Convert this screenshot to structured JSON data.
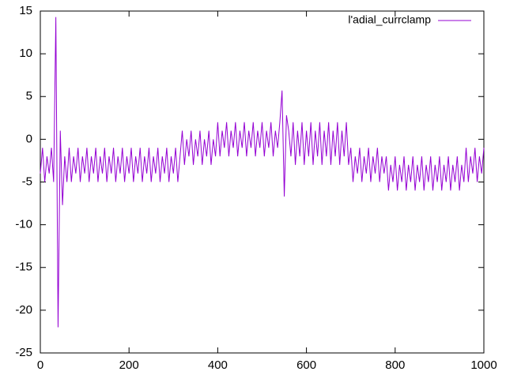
{
  "chart_data": {
    "type": "line",
    "legend": "top-right",
    "series": [
      {
        "name": "l'adial_currclamp",
        "color": "#9400d3",
        "x": [
          0,
          5,
          10,
          15,
          20,
          25,
          30,
          35,
          40,
          45,
          50,
          55,
          60,
          65,
          70,
          75,
          80,
          85,
          90,
          95,
          100,
          105,
          110,
          115,
          120,
          125,
          130,
          135,
          140,
          145,
          150,
          155,
          160,
          165,
          170,
          175,
          180,
          185,
          190,
          195,
          200,
          205,
          210,
          215,
          220,
          225,
          230,
          235,
          240,
          245,
          250,
          255,
          260,
          265,
          270,
          275,
          280,
          285,
          290,
          295,
          300,
          305,
          310,
          315,
          320,
          325,
          330,
          335,
          340,
          345,
          350,
          355,
          360,
          365,
          370,
          375,
          380,
          385,
          390,
          395,
          400,
          405,
          410,
          415,
          420,
          425,
          430,
          435,
          440,
          445,
          450,
          455,
          460,
          465,
          470,
          475,
          480,
          485,
          490,
          495,
          500,
          505,
          510,
          515,
          520,
          525,
          530,
          535,
          540,
          545,
          550,
          555,
          560,
          565,
          570,
          575,
          580,
          585,
          590,
          595,
          600,
          605,
          610,
          615,
          620,
          625,
          630,
          635,
          640,
          645,
          650,
          655,
          660,
          665,
          670,
          675,
          680,
          685,
          690,
          695,
          700,
          705,
          710,
          715,
          720,
          725,
          730,
          735,
          740,
          745,
          750,
          755,
          760,
          765,
          770,
          775,
          780,
          785,
          790,
          795,
          800,
          805,
          810,
          815,
          820,
          825,
          830,
          835,
          840,
          845,
          850,
          855,
          860,
          865,
          870,
          875,
          880,
          885,
          890,
          895,
          900,
          905,
          910,
          915,
          920,
          925,
          930,
          935,
          940,
          945,
          950,
          955,
          960,
          965,
          970,
          975,
          980,
          985,
          990,
          995,
          1000
        ],
        "values": [
          -4,
          -1,
          -5,
          -2,
          -4,
          -1,
          -5,
          14.3,
          -22,
          1,
          -7.7,
          -2,
          -5,
          -1,
          -5,
          -2,
          -4,
          -1,
          -5,
          -2,
          -4,
          -1,
          -5,
          -2,
          -4,
          -1,
          -5,
          -2,
          -4,
          -1,
          -5,
          -2,
          -4,
          -1,
          -5,
          -2,
          -4,
          -1,
          -5,
          -2,
          -4,
          -1,
          -5,
          -2,
          -4,
          -1,
          -5,
          -2,
          -4,
          -1,
          -5,
          -2,
          -4,
          -1,
          -5,
          -2,
          -4,
          -1,
          -5,
          -2,
          -4,
          -1,
          -5,
          -2,
          1,
          -3,
          0,
          -2,
          1,
          -3,
          0,
          -2,
          1,
          -3,
          0,
          -2,
          1,
          -3,
          0,
          -2,
          2,
          -2,
          1,
          -1,
          2,
          -2,
          1,
          -1,
          2,
          -2,
          1,
          -1,
          2,
          -2,
          1,
          -1,
          2,
          -2,
          1,
          -1,
          2,
          -2,
          1,
          -1,
          2,
          -2,
          1,
          -1,
          2,
          5.7,
          -6.7,
          2.8,
          1,
          -2,
          2,
          -3,
          1,
          -2,
          2,
          -3,
          1,
          -2,
          2,
          -3,
          1,
          -2,
          2,
          -3,
          1,
          -2,
          2,
          -3,
          1,
          -2,
          2,
          -3,
          1,
          -2,
          2,
          -3,
          -1,
          -5,
          -2,
          -4,
          -1,
          -5,
          -2,
          -4,
          -1,
          -5,
          -2,
          -4,
          -1,
          -5,
          -2,
          -4,
          -2,
          -6,
          -3,
          -5,
          -2,
          -6,
          -3,
          -5,
          -2,
          -6,
          -3,
          -5,
          -2,
          -6,
          -3,
          -5,
          -2,
          -6,
          -3,
          -5,
          -2,
          -6,
          -3,
          -5,
          -2,
          -6,
          -3,
          -5,
          -2,
          -6,
          -3,
          -5,
          -2,
          -6,
          -3,
          -5,
          -1,
          -5,
          -2,
          -4,
          -1,
          -5,
          -2,
          -4,
          -1
        ]
      }
    ],
    "xlim": [
      0,
      1000
    ],
    "xticks": [
      0,
      200,
      400,
      600,
      800,
      1000
    ],
    "ylim": [
      -25,
      15
    ],
    "yticks": [
      -25,
      -20,
      -15,
      -10,
      -5,
      0,
      5,
      10,
      15
    ]
  }
}
